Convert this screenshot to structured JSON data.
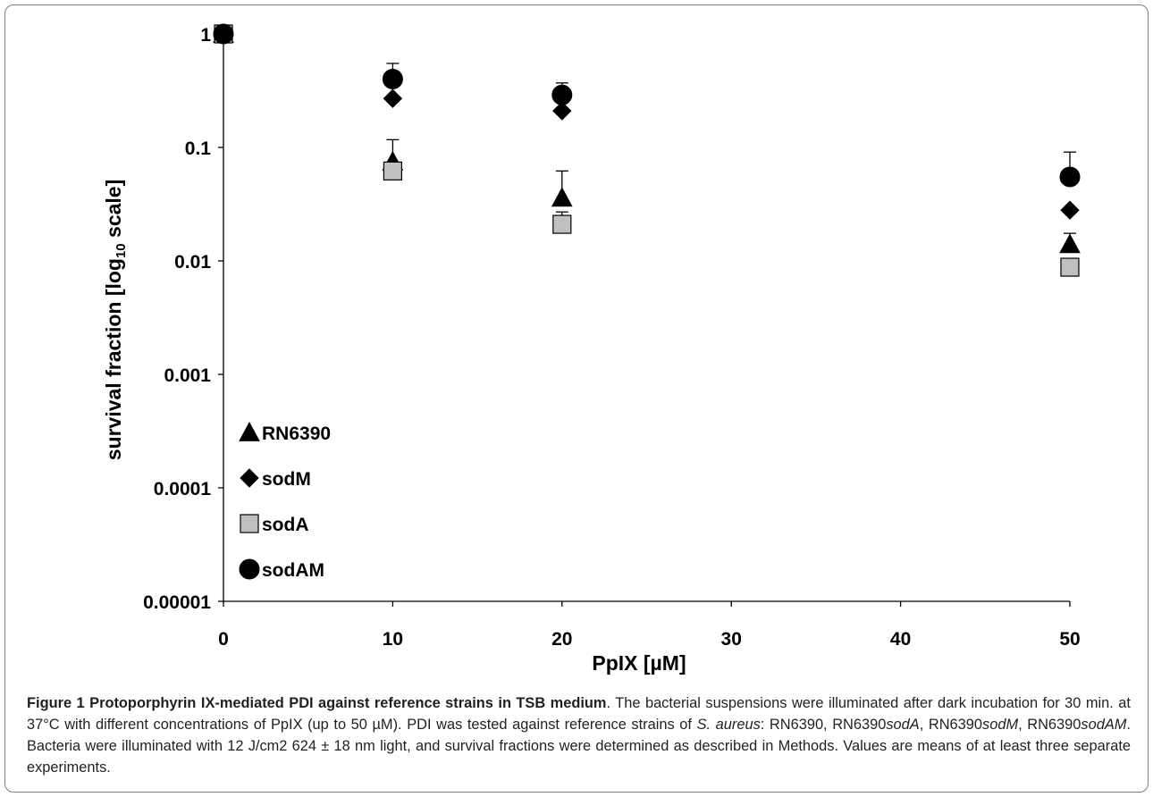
{
  "chart_data": {
    "type": "scatter",
    "xlabel": "PpIX [µM]",
    "ylabel": "survival fraction [log",
    "ylabel_sub": "10",
    "ylabel_tail": " scale]",
    "yscale": "log",
    "xlim": [
      0,
      50
    ],
    "ylim": [
      1e-05,
      1
    ],
    "x_ticks": [
      0,
      10,
      20,
      30,
      40,
      50
    ],
    "x_tick_labels": [
      "0",
      "10",
      "20",
      "30",
      "40",
      "50"
    ],
    "y_ticks": [
      1,
      0.1,
      0.01,
      0.001,
      0.0001,
      1e-05
    ],
    "y_tick_labels": [
      "1",
      "0.1",
      "0.01",
      "0.001",
      "0.0001",
      "0.00001"
    ],
    "legend_position": "bottom-left",
    "series": [
      {
        "name": "RN6390",
        "marker": "triangle",
        "color": "#000000",
        "x": [
          0,
          10,
          20,
          50
        ],
        "y": [
          1,
          0.075,
          0.036,
          0.014
        ],
        "err": [
          0,
          0.042,
          0.026,
          0.0035
        ]
      },
      {
        "name": "sodM",
        "marker": "diamond",
        "color": "#000000",
        "x": [
          0,
          10,
          20,
          50
        ],
        "y": [
          1,
          0.27,
          0.21,
          0.028
        ],
        "err": [
          0,
          0,
          0,
          0
        ]
      },
      {
        "name": "sodA",
        "marker": "square",
        "color": "#c0c0c0",
        "x": [
          0,
          10,
          20,
          50
        ],
        "y": [
          1,
          0.062,
          0.021,
          0.0088
        ],
        "err": [
          0,
          0,
          0.006,
          0.0016
        ]
      },
      {
        "name": "sodAM",
        "marker": "circle",
        "color": "#000000",
        "x": [
          0,
          10,
          20,
          50
        ],
        "y": [
          1,
          0.4,
          0.29,
          0.055
        ],
        "err": [
          0,
          0.15,
          0.08,
          0.036
        ]
      }
    ]
  },
  "caption": {
    "label": "Figure 1",
    "title": "Protoporphyrin IX-mediated PDI against reference strains in TSB medium",
    "text_1": ". The bacterial suspensions were illuminated after dark incubation for 30 min. at 37°C with different concentrations of PpIX (up to 50 µM). PDI was tested against reference strains of ",
    "species": "S. aureus",
    "text_2": ": RN6390, RN6390",
    "strain_a": "sodA",
    "text_3": ", RN6390",
    "strain_m": "sodM",
    "text_4": ", RN6390",
    "strain_am": "sodAM",
    "text_5": ". Bacteria were illuminated with 12 J/cm2 624 ± 18 nm light, and survival fractions were determined as described in Methods. Values are means of at least three separate experiments."
  }
}
